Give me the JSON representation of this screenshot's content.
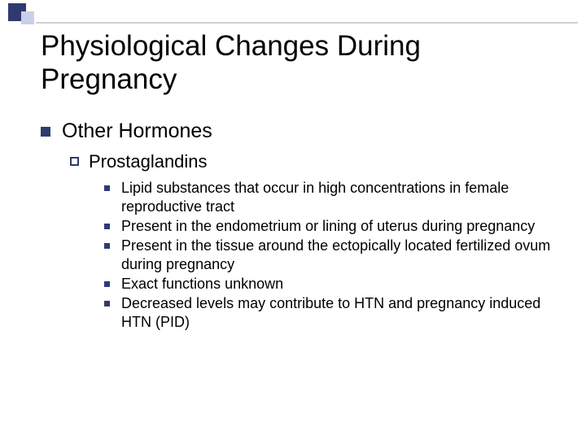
{
  "colors": {
    "bullet_dark": "#2f3b6f",
    "bullet_light": "#c9d0e8",
    "divider": "#cfcfcf",
    "text": "#000000",
    "background": "#ffffff"
  },
  "typography": {
    "title_fontsize": 35,
    "level1_fontsize": 25,
    "level2_fontsize": 22,
    "level3_fontsize": 18,
    "font_family": "Arial"
  },
  "title": "Physiological Changes During Pregnancy",
  "level1": "Other Hormones",
  "level2": "Prostaglandins",
  "level3_items": [
    "Lipid substances that occur in high concentrations in female reproductive tract",
    "Present in the endometrium or lining of uterus during pregnancy",
    "Present in the tissue around the ectopically located fertilized ovum during pregnancy",
    "Exact functions unknown",
    "Decreased levels may contribute to HTN and pregnancy induced HTN (PID)"
  ]
}
